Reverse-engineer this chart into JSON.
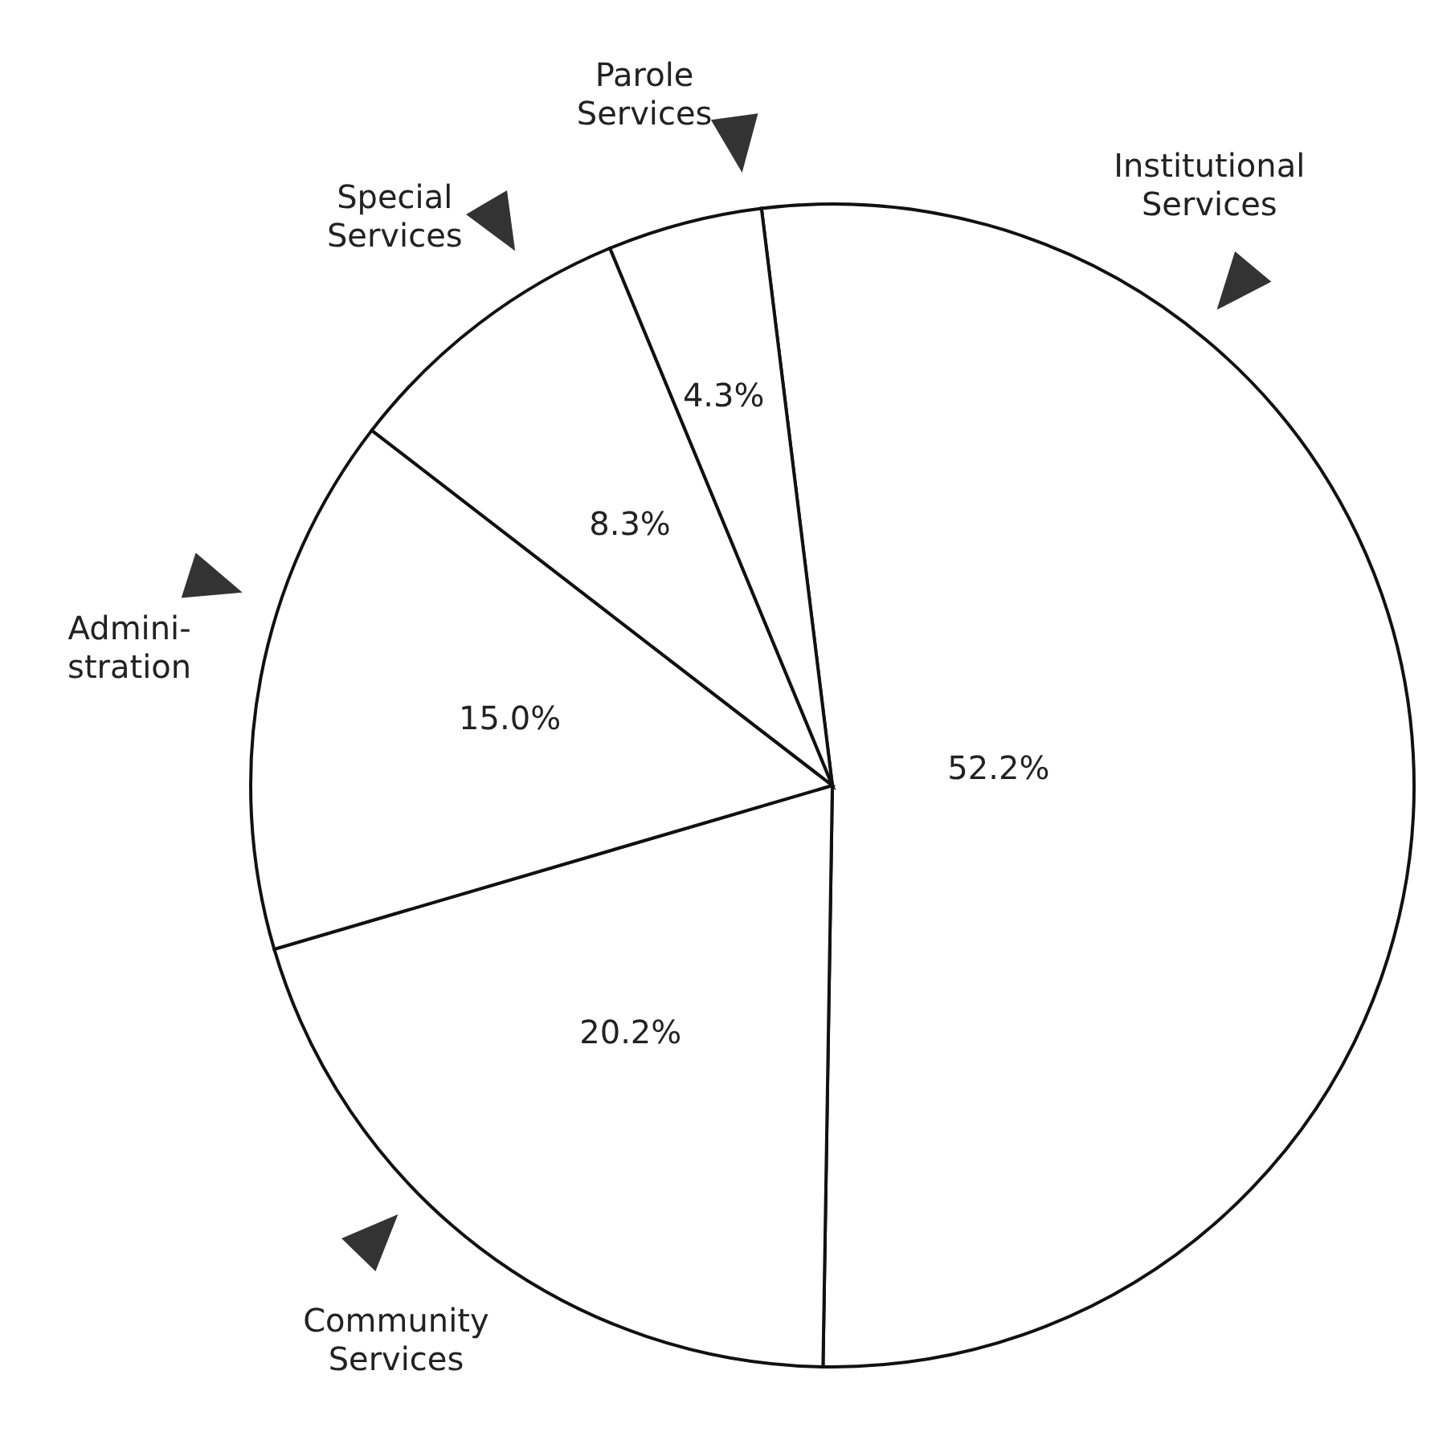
{
  "chart_data": {
    "type": "pie",
    "categories": [
      "Institutional\nServices",
      "Community\nServices",
      "Admini-\nstration",
      "Special\nServices",
      "Parole\nServices"
    ],
    "values": [
      52.2,
      20.2,
      15.0,
      8.3,
      4.3
    ],
    "value_labels": [
      "52.2%",
      "20.2%",
      "15.0%",
      "8.3%",
      "4.3%"
    ],
    "colors": [
      "#ffffff",
      "#ffffff",
      "#ffffff",
      "#ffffff",
      "#ffffff"
    ]
  }
}
